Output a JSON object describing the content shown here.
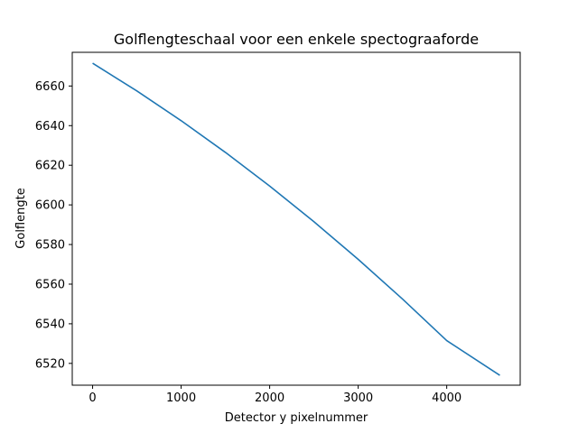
{
  "chart_data": {
    "type": "line",
    "title": "Golflengteschaal voor een enkele spectograaforde",
    "xlabel": "Detector y pixelnummer",
    "ylabel": "Golflengte",
    "xlim": [
      -230,
      4830
    ],
    "ylim": [
      6509,
      6677
    ],
    "xticks": [
      0,
      1000,
      2000,
      3000,
      4000
    ],
    "yticks": [
      6520,
      6540,
      6560,
      6580,
      6600,
      6620,
      6640,
      6660
    ],
    "grid": false,
    "series": [
      {
        "color": "#1f77b4",
        "x": [
          0,
          500,
          1000,
          1500,
          2000,
          2500,
          3000,
          3500,
          4000,
          4600
        ],
        "y": [
          6671.5,
          6657.5,
          6642.5,
          6626.5,
          6609.5,
          6591.5,
          6572.5,
          6552.5,
          6531.5,
          6514.0
        ]
      }
    ]
  }
}
